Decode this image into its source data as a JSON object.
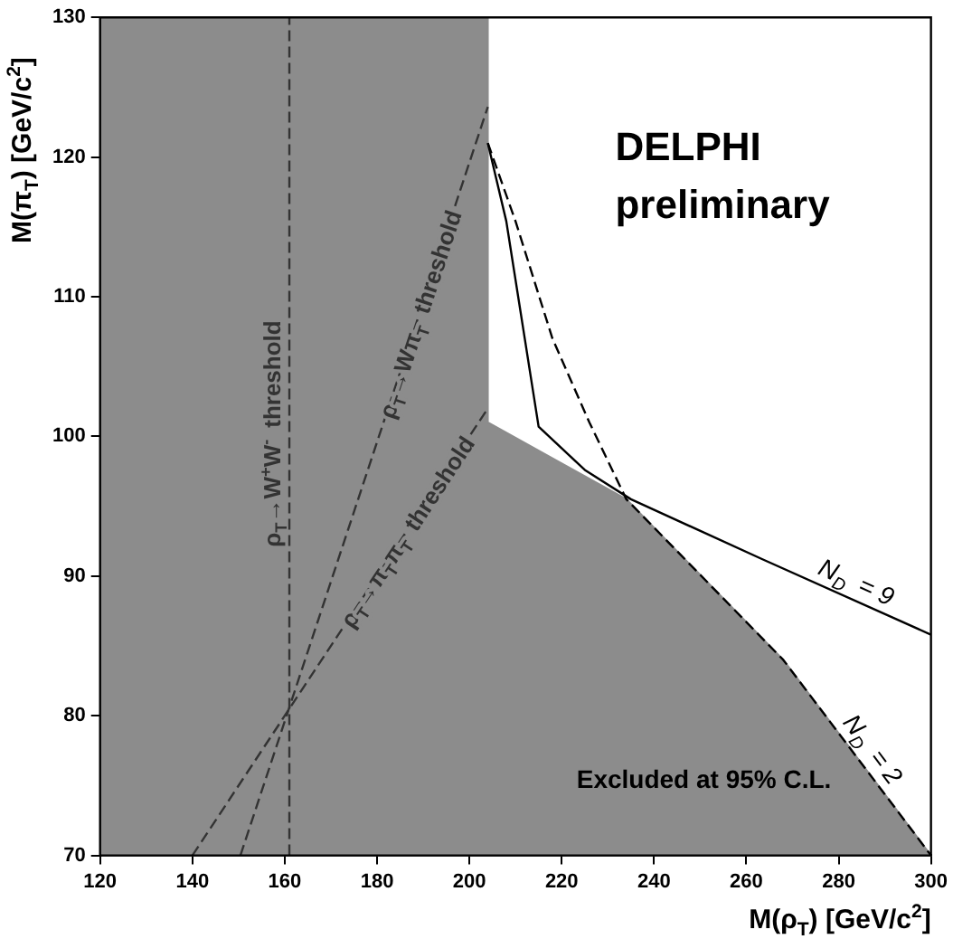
{
  "chart_data": {
    "type": "line",
    "title": "DELPHI preliminary",
    "xlabel": "M(ρ$_{T}$) [GeV/c$^{2}$]",
    "ylabel": "M(π$_{T}$) [GeV/c$^{2}$]",
    "xlim": [
      120,
      300
    ],
    "ylim": [
      70,
      130
    ],
    "xticks": [
      120,
      140,
      160,
      180,
      200,
      220,
      240,
      260,
      280,
      300
    ],
    "yticks": [
      70,
      80,
      90,
      100,
      110,
      120,
      130
    ],
    "annotations": [
      "Excluded at 95% C.L."
    ],
    "series": [
      {
        "type": "area",
        "color": "#8c8c8c",
        "x": [
          120,
          204,
          204,
          234,
          268,
          300
        ],
        "values": [
          130,
          130,
          101,
          95.5,
          84,
          70
        ]
      },
      {
        "type": "line",
        "name": "ρ$_{T}$→W$^{+}$W$^{-}$ threshold",
        "color": "#333333",
        "line_style": "dashed",
        "x": [
          161,
          161
        ],
        "values": [
          70,
          130
        ]
      },
      {
        "type": "line",
        "name": "ρ$_{T}$→Wπ$_{T}$ threshold",
        "color": "#333333",
        "line_style": "dashed",
        "x": [
          150.4,
          204
        ],
        "values": [
          70,
          123.6
        ]
      },
      {
        "type": "line",
        "name": "ρ$_{T}$→π$_{T}$π$_{T}$ threshold",
        "color": "#333333",
        "line_style": "dashed",
        "x": [
          140,
          204
        ],
        "values": [
          70,
          102
        ]
      },
      {
        "type": "line",
        "name": "N$_{D}$ = 9",
        "color": "#000000",
        "line_style": "solid",
        "x": [
          204,
          208,
          215,
          225,
          235,
          263.5,
          300
        ],
        "values": [
          121,
          115.4,
          100.7,
          97.6,
          95.5,
          91.2,
          85.8
        ]
      },
      {
        "type": "line",
        "name": "N$_{D}$ = 2",
        "color": "#000000",
        "line_style": "dashed",
        "x": [
          204,
          210,
          218,
          226,
          234,
          268,
          300
        ],
        "values": [
          121,
          115.4,
          107,
          101,
          95.5,
          84,
          70
        ]
      }
    ]
  }
}
